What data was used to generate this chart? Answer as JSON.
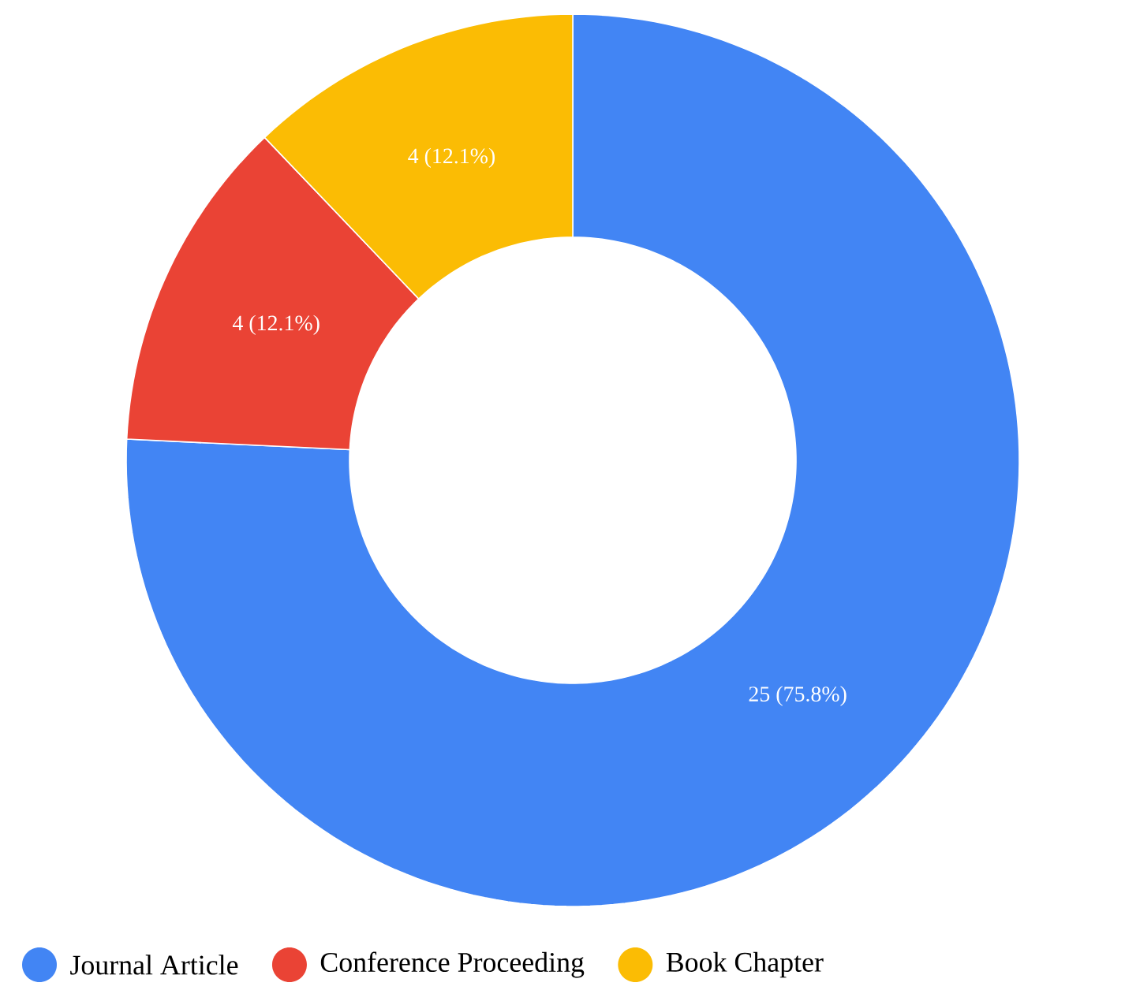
{
  "chart_data": {
    "type": "donut",
    "categories": [
      "Journal Article",
      "Conference Proceeding",
      "Book Chapter"
    ],
    "values": [
      25,
      4,
      4
    ],
    "colors": [
      "#4285f4",
      "#ea4335",
      "#fbbc04"
    ],
    "value_labels": [
      "25 (75.8%)",
      "4 (12.1%)",
      "4 (12.1%)"
    ],
    "legend": "bottom"
  }
}
